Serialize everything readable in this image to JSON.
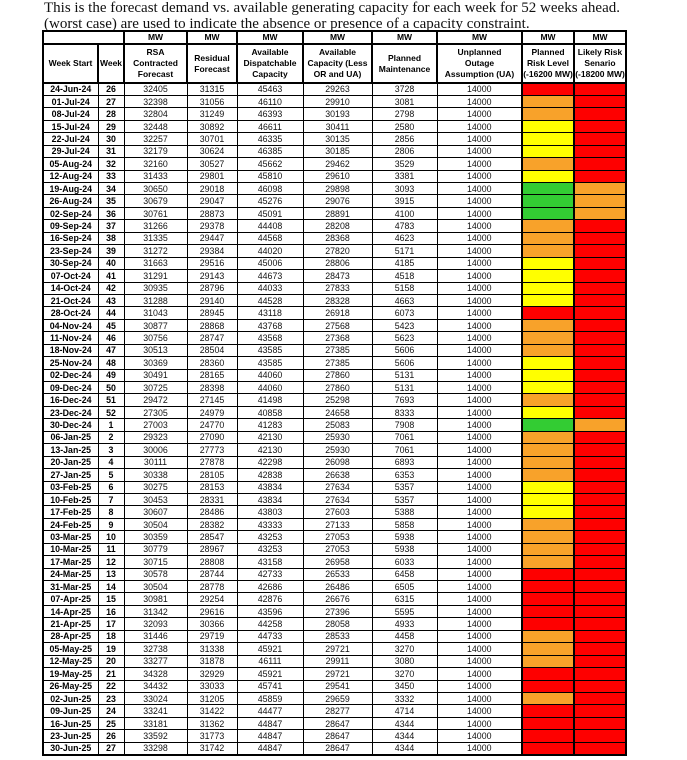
{
  "intro": {
    "line1": "This is the forecast demand vs. available generating capacity for each week for 52 weeks ahead.",
    "line2": "(worst case) are used to indicate the absence or presence of a capacity constraint."
  },
  "table": {
    "unit_label": "MW",
    "columns": [
      {
        "id": "week_start",
        "label": "Week Start",
        "has_unit": false
      },
      {
        "id": "week",
        "label": "Week",
        "has_unit": false
      },
      {
        "id": "rsa",
        "label": "RSA\nContracted\nForecast",
        "has_unit": true
      },
      {
        "id": "residual",
        "label": "Residual\nForecast",
        "has_unit": true
      },
      {
        "id": "dispatchable",
        "label": "Available\nDispatchable\nCapacity",
        "has_unit": true
      },
      {
        "id": "capacity_less",
        "label": "Available\nCapacity (Less\nOR and UA)",
        "has_unit": true
      },
      {
        "id": "maintenance",
        "label": "Planned\nMaintenance",
        "has_unit": true
      },
      {
        "id": "ua",
        "label": "Unplanned\nOutage\nAssumption (UA)",
        "has_unit": true
      },
      {
        "id": "planned_risk",
        "label": "Planned\nRisk Level\n(-16200 MW)",
        "has_unit": true
      },
      {
        "id": "likely_risk",
        "label": "Likely Risk\nSenario\n(-18200 MW)",
        "has_unit": true
      }
    ],
    "risk_colors": {
      "red": "#FE0000",
      "orange": "#F8A22A",
      "yellow": "#FFFF00",
      "green": "#33CC33"
    },
    "row_fields": [
      "week_start",
      "week",
      "rsa_contracted_forecast",
      "residual_forecast",
      "available_dispatchable_capacity",
      "available_capacity_less_or_ua",
      "planned_maintenance",
      "unplanned_outage_assumption_ua",
      "planned_risk_level",
      "likely_risk_scenario"
    ],
    "rows": [
      [
        "24-Jun-24",
        26,
        32405,
        31315,
        45463,
        29263,
        3728,
        14000,
        "red",
        "red"
      ],
      [
        "01-Jul-24",
        27,
        32398,
        31056,
        46110,
        29910,
        3081,
        14000,
        "orange",
        "red"
      ],
      [
        "08-Jul-24",
        28,
        32804,
        31249,
        46393,
        30193,
        2798,
        14000,
        "orange",
        "red"
      ],
      [
        "15-Jul-24",
        29,
        32448,
        30892,
        46611,
        30411,
        2580,
        14000,
        "yellow",
        "red"
      ],
      [
        "22-Jul-24",
        30,
        32257,
        30701,
        46335,
        30135,
        2856,
        14000,
        "yellow",
        "red"
      ],
      [
        "29-Jul-24",
        31,
        32179,
        30624,
        46385,
        30185,
        2806,
        14000,
        "yellow",
        "red"
      ],
      [
        "05-Aug-24",
        32,
        32160,
        30527,
        45662,
        29462,
        3529,
        14000,
        "orange",
        "red"
      ],
      [
        "12-Aug-24",
        33,
        31433,
        29801,
        45810,
        29610,
        3381,
        14000,
        "yellow",
        "red"
      ],
      [
        "19-Aug-24",
        34,
        30650,
        29018,
        46098,
        29898,
        3093,
        14000,
        "green",
        "orange"
      ],
      [
        "26-Aug-24",
        35,
        30679,
        29047,
        45276,
        29076,
        3915,
        14000,
        "green",
        "orange"
      ],
      [
        "02-Sep-24",
        36,
        30761,
        28873,
        45091,
        28891,
        4100,
        14000,
        "green",
        "orange"
      ],
      [
        "09-Sep-24",
        37,
        31266,
        29378,
        44408,
        28208,
        4783,
        14000,
        "orange",
        "red"
      ],
      [
        "16-Sep-24",
        38,
        31335,
        29447,
        44568,
        28368,
        4623,
        14000,
        "orange",
        "red"
      ],
      [
        "23-Sep-24",
        39,
        31272,
        29384,
        44020,
        27820,
        5171,
        14000,
        "orange",
        "red"
      ],
      [
        "30-Sep-24",
        40,
        31663,
        29516,
        45006,
        28806,
        4185,
        14000,
        "yellow",
        "red"
      ],
      [
        "07-Oct-24",
        41,
        31291,
        29143,
        44673,
        28473,
        4518,
        14000,
        "yellow",
        "red"
      ],
      [
        "14-Oct-24",
        42,
        30935,
        28796,
        44033,
        27833,
        5158,
        14000,
        "yellow",
        "red"
      ],
      [
        "21-Oct-24",
        43,
        31288,
        29140,
        44528,
        28328,
        4663,
        14000,
        "yellow",
        "red"
      ],
      [
        "28-Oct-24",
        44,
        31043,
        28945,
        43118,
        26918,
        6073,
        14000,
        "red",
        "red"
      ],
      [
        "04-Nov-24",
        45,
        30877,
        28868,
        43768,
        27568,
        5423,
        14000,
        "orange",
        "red"
      ],
      [
        "11-Nov-24",
        46,
        30756,
        28747,
        43568,
        27368,
        5623,
        14000,
        "orange",
        "red"
      ],
      [
        "18-Nov-24",
        47,
        30513,
        28504,
        43585,
        27385,
        5606,
        14000,
        "orange",
        "red"
      ],
      [
        "25-Nov-24",
        48,
        30369,
        28360,
        43585,
        27385,
        5606,
        14000,
        "yellow",
        "red"
      ],
      [
        "02-Dec-24",
        49,
        30491,
        28165,
        44060,
        27860,
        5131,
        14000,
        "yellow",
        "red"
      ],
      [
        "09-Dec-24",
        50,
        30725,
        28398,
        44060,
        27860,
        5131,
        14000,
        "yellow",
        "red"
      ],
      [
        "16-Dec-24",
        51,
        29472,
        27145,
        41498,
        25298,
        7693,
        14000,
        "orange",
        "red"
      ],
      [
        "23-Dec-24",
        52,
        27305,
        24979,
        40858,
        24658,
        8333,
        14000,
        "yellow",
        "red"
      ],
      [
        "30-Dec-24",
        1,
        27003,
        24770,
        41283,
        25083,
        7908,
        14000,
        "green",
        "orange"
      ],
      [
        "06-Jan-25",
        2,
        29323,
        27090,
        42130,
        25930,
        7061,
        14000,
        "orange",
        "red"
      ],
      [
        "13-Jan-25",
        3,
        30006,
        27773,
        42130,
        25930,
        7061,
        14000,
        "orange",
        "red"
      ],
      [
        "20-Jan-25",
        4,
        30111,
        27878,
        42298,
        26098,
        6893,
        14000,
        "orange",
        "red"
      ],
      [
        "27-Jan-25",
        5,
        30338,
        28105,
        42838,
        26638,
        6353,
        14000,
        "orange",
        "red"
      ],
      [
        "03-Feb-25",
        6,
        30275,
        28153,
        43834,
        27634,
        5357,
        14000,
        "yellow",
        "red"
      ],
      [
        "10-Feb-25",
        7,
        30453,
        28331,
        43834,
        27634,
        5357,
        14000,
        "yellow",
        "red"
      ],
      [
        "17-Feb-25",
        8,
        30607,
        28486,
        43803,
        27603,
        5388,
        14000,
        "yellow",
        "red"
      ],
      [
        "24-Feb-25",
        9,
        30504,
        28382,
        43333,
        27133,
        5858,
        14000,
        "orange",
        "red"
      ],
      [
        "03-Mar-25",
        10,
        30359,
        28547,
        43253,
        27053,
        5938,
        14000,
        "orange",
        "red"
      ],
      [
        "10-Mar-25",
        11,
        30779,
        28967,
        43253,
        27053,
        5938,
        14000,
        "orange",
        "red"
      ],
      [
        "17-Mar-25",
        12,
        30715,
        28808,
        43158,
        26958,
        6033,
        14000,
        "orange",
        "red"
      ],
      [
        "24-Mar-25",
        13,
        30578,
        28744,
        42733,
        26533,
        6458,
        14000,
        "red",
        "red"
      ],
      [
        "31-Mar-25",
        14,
        30504,
        28778,
        42686,
        26486,
        6505,
        14000,
        "red",
        "red"
      ],
      [
        "07-Apr-25",
        15,
        30981,
        29254,
        42876,
        26676,
        6315,
        14000,
        "red",
        "red"
      ],
      [
        "14-Apr-25",
        16,
        31342,
        29616,
        43596,
        27396,
        5595,
        14000,
        "red",
        "red"
      ],
      [
        "21-Apr-25",
        17,
        32093,
        30366,
        44258,
        28058,
        4933,
        14000,
        "red",
        "red"
      ],
      [
        "28-Apr-25",
        18,
        31446,
        29719,
        44733,
        28533,
        4458,
        14000,
        "orange",
        "red"
      ],
      [
        "05-May-25",
        19,
        32738,
        31338,
        45921,
        29721,
        3270,
        14000,
        "orange",
        "red"
      ],
      [
        "12-May-25",
        20,
        33277,
        31878,
        46111,
        29911,
        3080,
        14000,
        "orange",
        "red"
      ],
      [
        "19-May-25",
        21,
        34328,
        32929,
        45921,
        29721,
        3270,
        14000,
        "red",
        "red"
      ],
      [
        "26-May-25",
        22,
        34432,
        33033,
        45741,
        29541,
        3450,
        14000,
        "red",
        "red"
      ],
      [
        "02-Jun-25",
        23,
        33024,
        31205,
        45859,
        29659,
        3332,
        14000,
        "orange",
        "red"
      ],
      [
        "09-Jun-25",
        24,
        33241,
        31422,
        44477,
        28277,
        4714,
        14000,
        "red",
        "red"
      ],
      [
        "16-Jun-25",
        25,
        33181,
        31362,
        44847,
        28647,
        4344,
        14000,
        "red",
        "red"
      ],
      [
        "23-Jun-25",
        26,
        33592,
        31773,
        44847,
        28647,
        4344,
        14000,
        "red",
        "red"
      ],
      [
        "30-Jun-25",
        27,
        33298,
        31742,
        44847,
        28647,
        4344,
        14000,
        "red",
        "red"
      ]
    ]
  }
}
